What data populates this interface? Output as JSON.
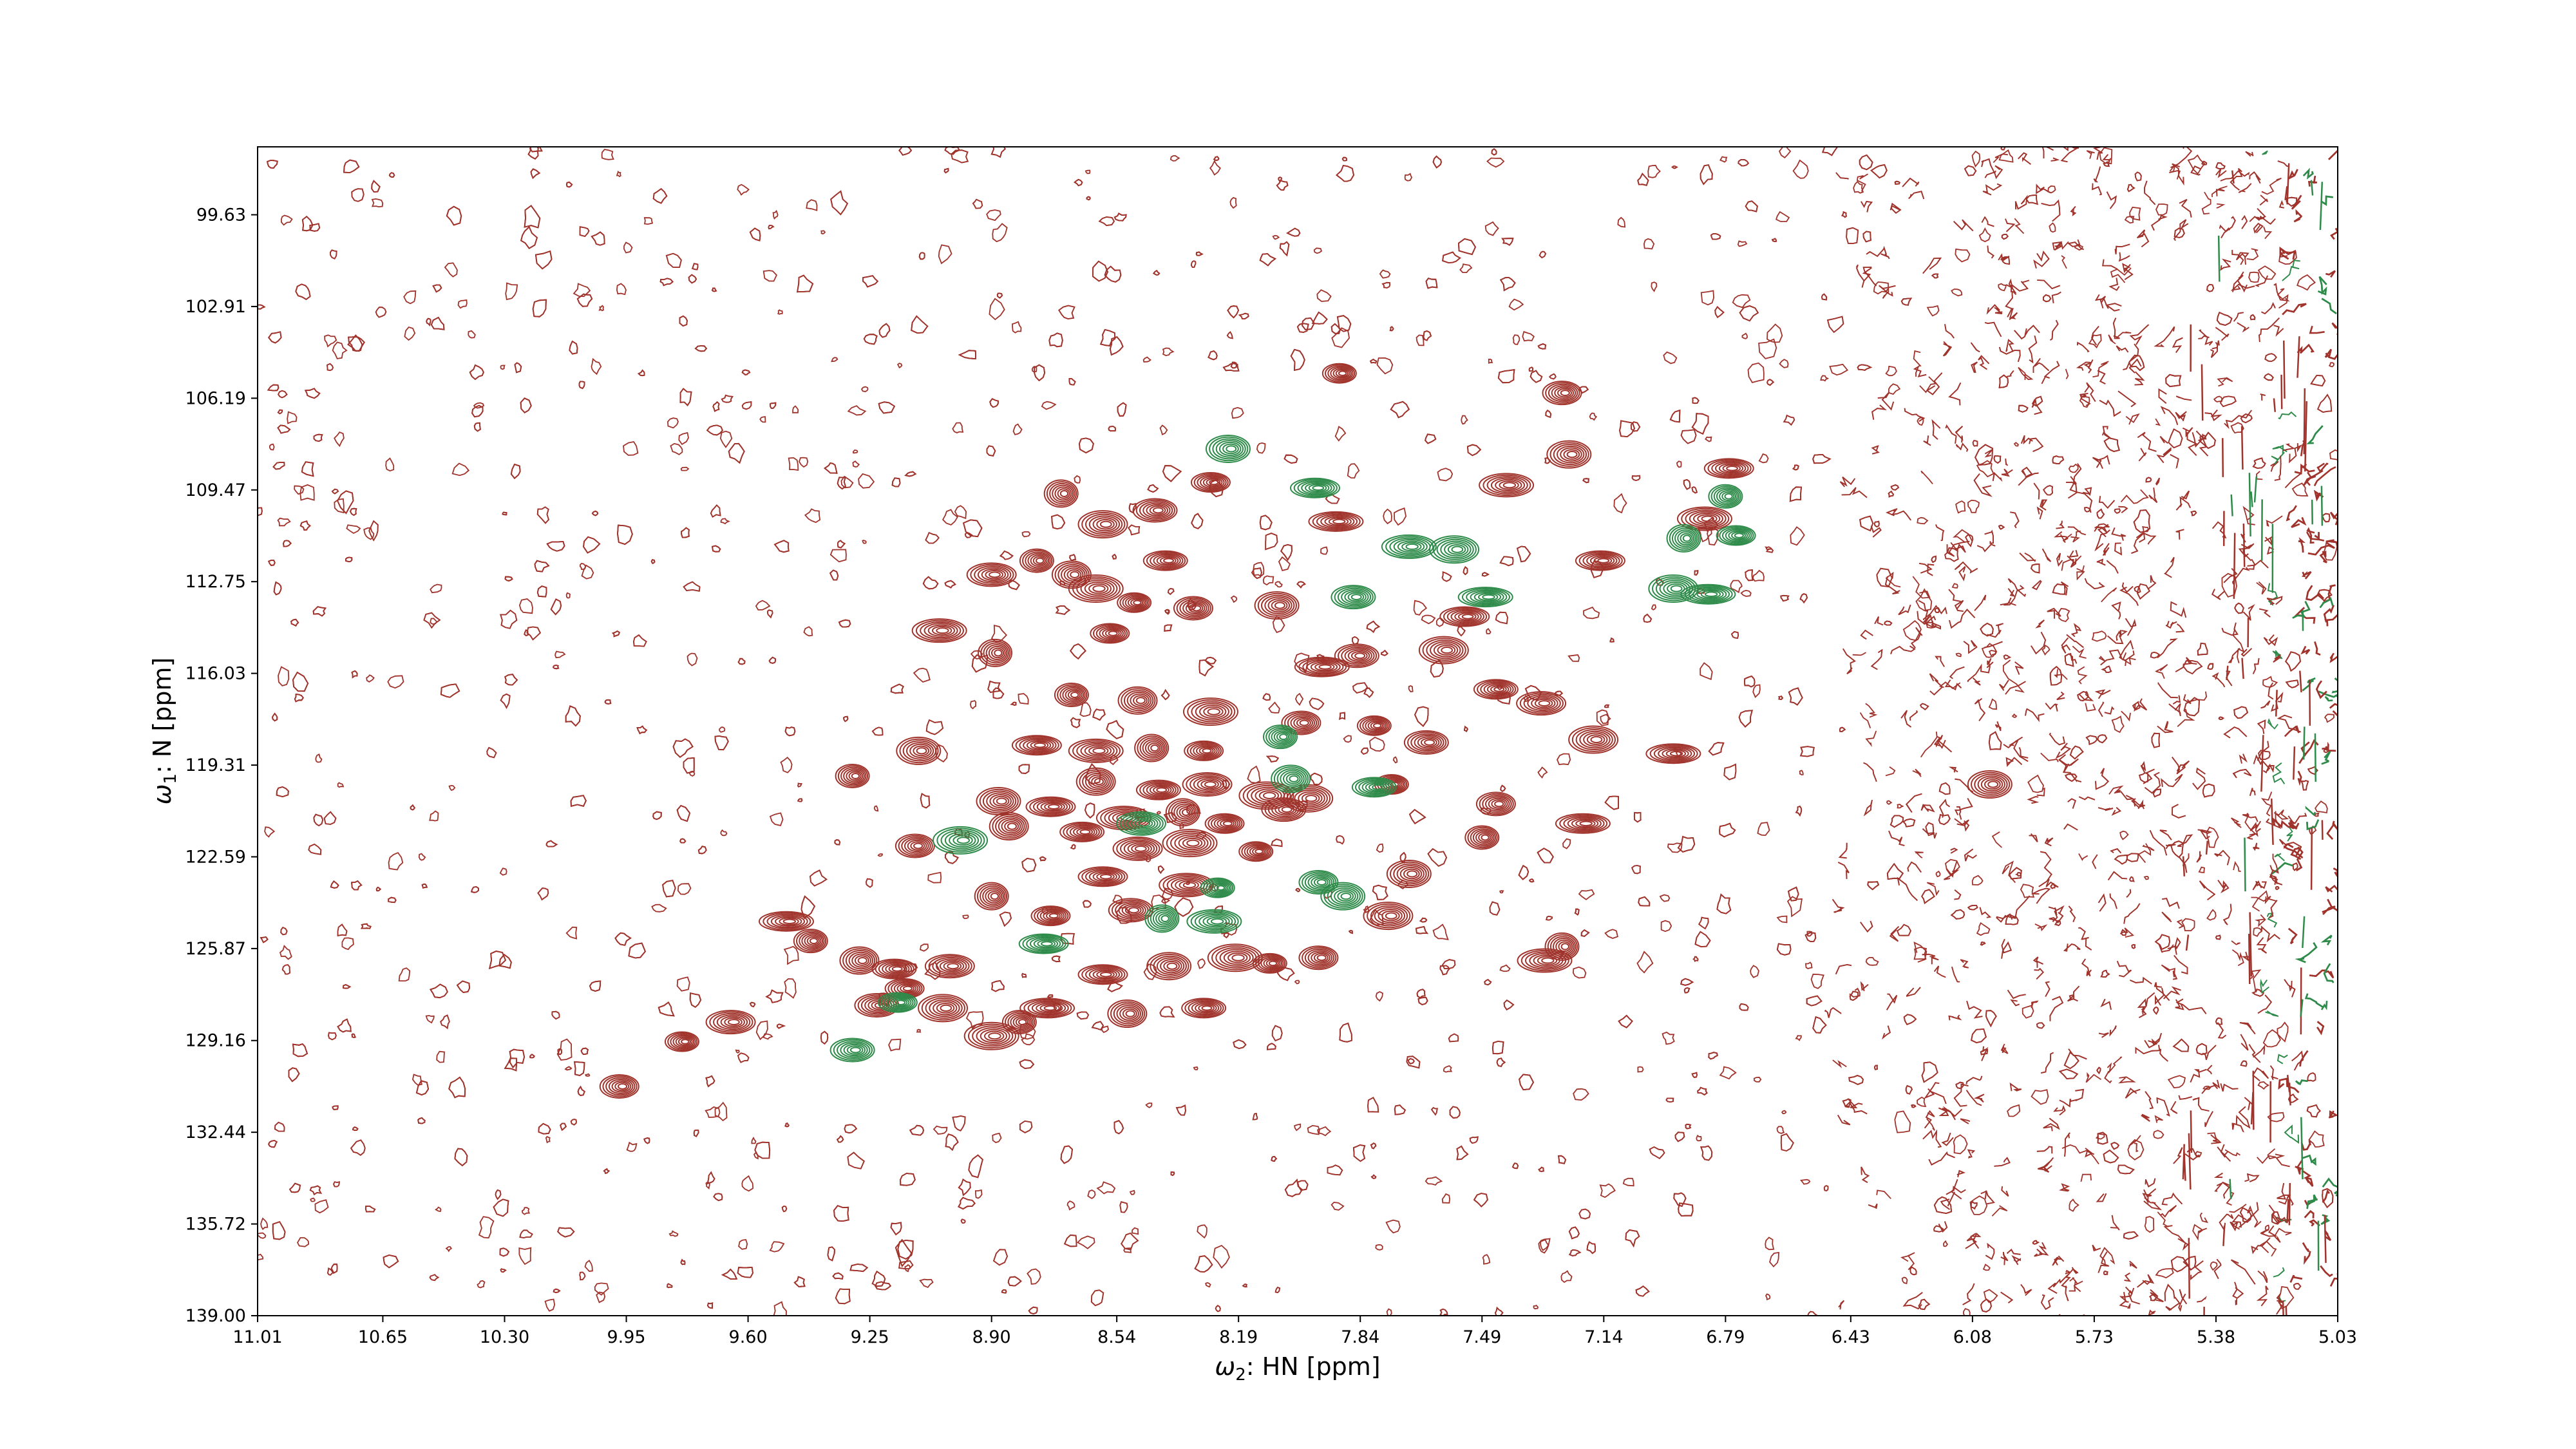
{
  "chart_data": {
    "type": "contour",
    "x_axis": {
      "label_symbol": "ω",
      "label_sub": "2",
      "label_rest": ": HN [ppm]",
      "range": [
        11.01,
        5.03
      ],
      "inverted": true,
      "ticks": [
        "11.01",
        "10.65",
        "10.30",
        "9.95",
        "9.60",
        "9.25",
        "8.90",
        "8.54",
        "8.19",
        "7.84",
        "7.49",
        "7.14",
        "6.79",
        "6.43",
        "6.08",
        "5.73",
        "5.38",
        "5.03"
      ]
    },
    "y_axis": {
      "label_symbol": "ω",
      "label_sub": "1",
      "label_rest": ": N [ppm]",
      "range": [
        97.2,
        139.0
      ],
      "inverted": true,
      "ticks": [
        "99.63",
        "102.91",
        "106.19",
        "109.47",
        "112.75",
        "116.03",
        "119.31",
        "122.59",
        "125.87",
        "129.16",
        "132.44",
        "135.72",
        "139.00"
      ]
    },
    "grid": false,
    "legend": "none",
    "colors": {
      "positive": "#a0342c",
      "negative": "#2e8b4a"
    },
    "peaks_positive": [
      [
        7.9,
        105.3
      ],
      [
        7.26,
        106.0
      ],
      [
        7.24,
        108.2
      ],
      [
        6.78,
        108.7
      ],
      [
        7.42,
        109.3
      ],
      [
        8.7,
        109.6
      ],
      [
        8.27,
        109.2
      ],
      [
        8.43,
        110.2
      ],
      [
        8.58,
        110.7
      ],
      [
        7.91,
        110.6
      ],
      [
        8.77,
        112.0
      ],
      [
        8.67,
        112.5
      ],
      [
        8.4,
        112.0
      ],
      [
        8.9,
        112.5
      ],
      [
        8.6,
        113.0
      ],
      [
        8.49,
        113.5
      ],
      [
        8.32,
        113.7
      ],
      [
        8.08,
        113.6
      ],
      [
        7.54,
        114.0
      ],
      [
        9.05,
        114.5
      ],
      [
        8.89,
        115.3
      ],
      [
        8.56,
        114.6
      ],
      [
        7.85,
        115.4
      ],
      [
        7.6,
        115.2
      ],
      [
        7.95,
        115.8
      ],
      [
        8.67,
        116.8
      ],
      [
        8.48,
        117.0
      ],
      [
        7.45,
        116.6
      ],
      [
        7.32,
        117.1
      ],
      [
        8.27,
        117.4
      ],
      [
        7.8,
        117.9
      ],
      [
        8.01,
        117.8
      ],
      [
        9.11,
        118.8
      ],
      [
        8.77,
        118.6
      ],
      [
        8.6,
        118.8
      ],
      [
        8.44,
        118.7
      ],
      [
        8.29,
        118.8
      ],
      [
        7.65,
        118.5
      ],
      [
        7.17,
        118.4
      ],
      [
        6.94,
        118.9
      ],
      [
        9.3,
        119.7
      ],
      [
        8.6,
        119.9
      ],
      [
        8.42,
        120.2
      ],
      [
        8.28,
        120.0
      ],
      [
        8.11,
        120.4
      ],
      [
        7.75,
        120.0
      ],
      [
        7.45,
        120.7
      ],
      [
        8.88,
        120.6
      ],
      [
        8.73,
        120.8
      ],
      [
        8.52,
        121.2
      ],
      [
        8.35,
        121.0
      ],
      [
        8.23,
        121.4
      ],
      [
        8.06,
        120.9
      ],
      [
        7.99,
        120.5
      ],
      [
        7.2,
        121.4
      ],
      [
        7.49,
        121.9
      ],
      [
        8.85,
        121.5
      ],
      [
        8.64,
        121.7
      ],
      [
        8.48,
        122.3
      ],
      [
        8.33,
        122.1
      ],
      [
        8.14,
        122.4
      ],
      [
        9.12,
        122.2
      ],
      [
        7.7,
        123.2
      ],
      [
        8.58,
        123.3
      ],
      [
        8.34,
        123.6
      ],
      [
        8.9,
        124.0
      ],
      [
        8.73,
        124.7
      ],
      [
        8.5,
        124.5
      ],
      [
        7.76,
        124.7
      ],
      [
        9.49,
        124.9
      ],
      [
        9.42,
        125.6
      ],
      [
        9.28,
        126.3
      ],
      [
        9.18,
        126.6
      ],
      [
        9.02,
        126.5
      ],
      [
        8.2,
        126.2
      ],
      [
        8.1,
        126.4
      ],
      [
        7.96,
        126.2
      ],
      [
        8.39,
        126.5
      ],
      [
        8.58,
        126.8
      ],
      [
        7.31,
        126.3
      ],
      [
        7.26,
        125.8
      ],
      [
        9.15,
        127.3
      ],
      [
        9.23,
        127.9
      ],
      [
        9.04,
        128.0
      ],
      [
        8.74,
        128.0
      ],
      [
        8.82,
        128.5
      ],
      [
        8.51,
        128.2
      ],
      [
        8.29,
        128.0
      ],
      [
        9.65,
        128.5
      ],
      [
        8.9,
        129.0
      ],
      [
        9.79,
        129.2
      ],
      [
        9.97,
        130.8
      ],
      [
        6.03,
        120.0
      ],
      [
        7.15,
        112.0
      ],
      [
        6.85,
        110.5
      ]
    ],
    "peaks_negative": [
      [
        8.22,
        108.0
      ],
      [
        7.97,
        109.4
      ],
      [
        7.7,
        111.5
      ],
      [
        6.91,
        111.2
      ],
      [
        6.76,
        111.1
      ],
      [
        7.86,
        113.3
      ],
      [
        6.94,
        113.0
      ],
      [
        6.84,
        113.2
      ],
      [
        8.07,
        118.3
      ],
      [
        8.04,
        119.8
      ],
      [
        7.8,
        120.1
      ],
      [
        8.47,
        121.4
      ],
      [
        8.99,
        122.0
      ],
      [
        8.25,
        123.7
      ],
      [
        7.96,
        123.5
      ],
      [
        7.89,
        124.0
      ],
      [
        8.75,
        125.7
      ],
      [
        8.26,
        124.9
      ],
      [
        8.41,
        124.8
      ],
      [
        9.17,
        127.8
      ],
      [
        9.3,
        129.5
      ],
      [
        7.57,
        111.6
      ],
      [
        7.48,
        113.3
      ],
      [
        6.79,
        109.7
      ]
    ]
  }
}
